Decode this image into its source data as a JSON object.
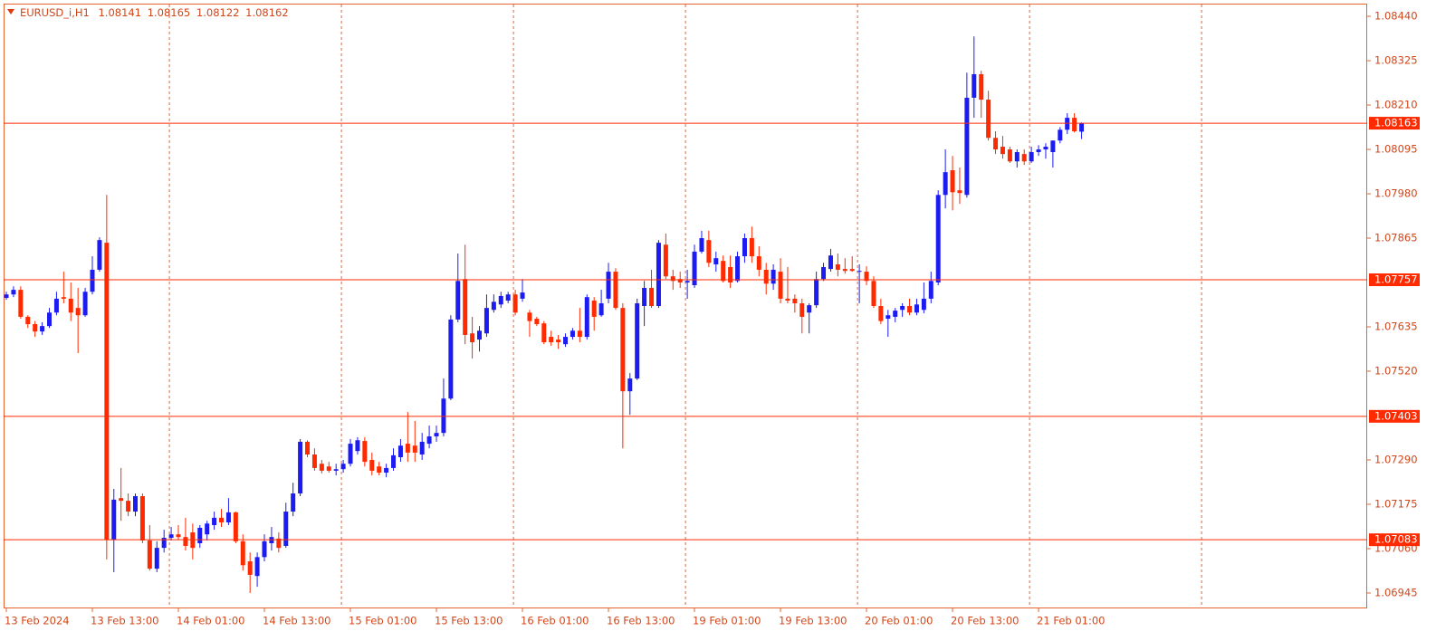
{
  "chart_data": {
    "type": "candlestick",
    "symbol": "EURUSD_i,H1",
    "last_ohlc": [
      1.08141,
      1.08165,
      1.08122,
      1.08162
    ],
    "categories": [
      "13 Feb 2024",
      null,
      null,
      null,
      null,
      null,
      null,
      null,
      null,
      null,
      null,
      null,
      "13 Feb 13:00",
      null,
      null,
      null,
      null,
      null,
      null,
      null,
      null,
      null,
      null,
      null,
      "14 Feb 01:00",
      null,
      null,
      null,
      null,
      null,
      null,
      null,
      null,
      null,
      null,
      null,
      "14 Feb 13:00",
      null,
      null,
      null,
      null,
      null,
      null,
      null,
      null,
      null,
      null,
      null,
      "15 Feb 01:00",
      null,
      null,
      null,
      null,
      null,
      null,
      null,
      null,
      null,
      null,
      null,
      "15 Feb 13:00",
      null,
      null,
      null,
      null,
      null,
      null,
      null,
      null,
      null,
      null,
      null,
      "16 Feb 01:00",
      null,
      null,
      null,
      null,
      null,
      null,
      null,
      null,
      null,
      null,
      null,
      "16 Feb 13:00",
      null,
      null,
      null,
      null,
      null,
      null,
      null,
      null,
      null,
      null,
      null,
      "19 Feb 01:00",
      null,
      null,
      null,
      null,
      null,
      null,
      null,
      null,
      null,
      null,
      null,
      "19 Feb 13:00",
      null,
      null,
      null,
      null,
      null,
      null,
      null,
      null,
      null,
      null,
      null,
      "20 Feb 01:00",
      null,
      null,
      null,
      null,
      null,
      null,
      null,
      null,
      null,
      null,
      null,
      "20 Feb 13:00",
      null,
      null,
      null,
      null,
      null,
      null,
      null,
      null,
      null,
      null,
      null,
      "21 Feb 01:00",
      null,
      null,
      null,
      null,
      null,
      null
    ],
    "open": [
      1.0771,
      1.07719,
      1.07731,
      1.07661,
      1.07642,
      1.07623,
      1.07637,
      1.07672,
      1.07712,
      1.07708,
      1.07684,
      1.07665,
      1.07726,
      1.07783,
      1.07853,
      1.07083,
      1.07191,
      1.07184,
      1.07156,
      1.07196,
      1.07081,
      1.07008,
      1.07062,
      1.07088,
      1.07097,
      1.0709,
      1.07102,
      1.07074,
      1.07097,
      1.07121,
      1.0714,
      1.07128,
      1.07154,
      1.07079,
      1.07027,
      1.06989,
      1.07038,
      1.07074,
      1.07086,
      1.07067,
      1.07156,
      1.07203,
      1.07337,
      1.07304,
      1.0728,
      1.07273,
      1.07262,
      1.07266,
      1.0728,
      1.07313,
      1.07339,
      1.0729,
      1.07273,
      1.07257,
      1.07269,
      1.07297,
      1.07332,
      1.07327,
      1.07304,
      1.07332,
      1.07351,
      1.0736,
      1.07449,
      1.07654,
      1.07759,
      1.07618,
      1.07602,
      1.07618,
      1.07679,
      1.07693,
      1.07703,
      1.07719,
      1.07708,
      1.07672,
      1.07656,
      1.07644,
      1.07609,
      1.07602,
      1.0759,
      1.07609,
      1.07625,
      1.07609,
      1.07703,
      1.07665,
      1.07708,
      1.07778,
      1.07684,
      1.07468,
      1.07501,
      1.07689,
      1.07736,
      1.07689,
      1.07848,
      1.07766,
      1.07759,
      1.0775,
      1.07743,
      1.0783,
      1.0786,
      1.07797,
      1.07806,
      1.0779,
      1.07754,
      1.07818,
      1.07865,
      1.07818,
      1.07783,
      1.07747,
      1.07778,
      1.07708,
      1.07708,
      1.07696,
      1.07672,
      1.07691,
      1.07759,
      1.07785,
      1.07797,
      1.07785,
      1.07785,
      1.07778,
      1.07778,
      1.07754,
      1.07689,
      1.07656,
      1.07661,
      1.07679,
      1.07689,
      1.07672,
      1.07679,
      1.07708,
      1.0775,
      1.07977,
      1.08041,
      1.07989,
      1.07977,
      1.08229,
      1.0829,
      1.08224,
      1.08125,
      1.08102,
      1.08095,
      1.08064,
      1.08083,
      1.08064,
      1.08088,
      1.08095,
      1.08088,
      1.08118,
      1.08146,
      1.08177,
      1.08141
    ],
    "high": [
      1.07726,
      1.0774,
      1.0774,
      1.07665,
      1.0765,
      1.07647,
      1.07684,
      1.07726,
      1.07778,
      1.0775,
      1.07736,
      1.07736,
      1.07818,
      1.07867,
      1.07977,
      1.07215,
      1.07269,
      1.07203,
      1.07203,
      1.07203,
      1.07121,
      1.07079,
      1.07109,
      1.07116,
      1.07121,
      1.0714,
      1.07125,
      1.07121,
      1.07132,
      1.07156,
      1.07163,
      1.07191,
      1.07156,
      1.07097,
      1.0705,
      1.0705,
      1.07097,
      1.07116,
      1.07102,
      1.07179,
      1.07231,
      1.07344,
      1.07341,
      1.0732,
      1.0729,
      1.07285,
      1.0728,
      1.0729,
      1.07344,
      1.07349,
      1.07349,
      1.07309,
      1.07285,
      1.0728,
      1.0732,
      1.07344,
      1.07414,
      1.07391,
      1.0736,
      1.07379,
      1.07379,
      1.07501,
      1.07665,
      1.07825,
      1.07848,
      1.07661,
      1.07637,
      1.07719,
      1.07719,
      1.07726,
      1.07726,
      1.07731,
      1.07759,
      1.07679,
      1.07661,
      1.0765,
      1.07625,
      1.07614,
      1.07618,
      1.07632,
      1.07684,
      1.07719,
      1.07712,
      1.07731,
      1.07801,
      1.07787,
      1.07696,
      1.07515,
      1.07708,
      1.07754,
      1.07783,
      1.0786,
      1.07877,
      1.07783,
      1.07778,
      1.07783,
      1.07848,
      1.07884,
      1.07884,
      1.0783,
      1.0782,
      1.0782,
      1.0783,
      1.07877,
      1.07895,
      1.07844,
      1.07801,
      1.07797,
      1.07813,
      1.0779,
      1.07719,
      1.07708,
      1.07696,
      1.07778,
      1.07801,
      1.07837,
      1.07825,
      1.07813,
      1.07818,
      1.07797,
      1.07792,
      1.07766,
      1.07708,
      1.07679,
      1.07684,
      1.07696,
      1.07708,
      1.07708,
      1.0775,
      1.07778,
      1.07989,
      1.08095,
      1.08078,
      1.08048,
      1.08294,
      1.08388,
      1.08299,
      1.08247,
      1.08142,
      1.0813,
      1.08102,
      1.08095,
      1.08095,
      1.08102,
      1.08106,
      1.08111,
      1.08118,
      1.08153,
      1.08189,
      1.08189,
      1.08165
    ],
    "low": [
      1.07705,
      1.07712,
      1.07656,
      1.07632,
      1.07609,
      1.07614,
      1.07632,
      1.07665,
      1.07696,
      1.0765,
      1.07567,
      1.07661,
      1.07719,
      1.07778,
      1.07032,
      1.06999,
      1.07132,
      1.07144,
      1.07144,
      1.07074,
      1.07003,
      1.06999,
      1.0705,
      1.07081,
      1.07083,
      1.07055,
      1.07032,
      1.07062,
      1.07081,
      1.07109,
      1.07116,
      1.07121,
      1.07074,
      1.07003,
      1.06945,
      1.06961,
      1.07027,
      1.07055,
      1.0705,
      1.07062,
      1.07144,
      1.07196,
      1.07297,
      1.07262,
      1.07255,
      1.07257,
      1.0725,
      1.07257,
      1.07273,
      1.07304,
      1.07273,
      1.0725,
      1.0725,
      1.07245,
      1.07262,
      1.07285,
      1.07285,
      1.07285,
      1.0729,
      1.0732,
      1.07337,
      1.07351,
      1.07445,
      1.07647,
      1.0759,
      1.07553,
      1.07571,
      1.07609,
      1.07672,
      1.07684,
      1.07696,
      1.07665,
      1.077,
      1.07609,
      1.07637,
      1.0759,
      1.07586,
      1.07578,
      1.07583,
      1.07602,
      1.07595,
      1.07602,
      1.07625,
      1.07661,
      1.07696,
      1.07679,
      1.0732,
      1.07407,
      1.07497,
      1.07637,
      1.07684,
      1.07684,
      1.07759,
      1.07731,
      1.07736,
      1.07708,
      1.07736,
      1.07825,
      1.0779,
      1.07778,
      1.0775,
      1.07736,
      1.0775,
      1.07801,
      1.07801,
      1.07766,
      1.07719,
      1.07731,
      1.07696,
      1.07696,
      1.07672,
      1.07618,
      1.07618,
      1.07684,
      1.07754,
      1.07778,
      1.07766,
      1.07773,
      1.07778,
      1.07696,
      1.07743,
      1.07684,
      1.07642,
      1.07609,
      1.07647,
      1.07661,
      1.07665,
      1.07665,
      1.0767,
      1.07696,
      1.07743,
      1.07942,
      1.07937,
      1.07954,
      1.0797,
      1.08177,
      1.08177,
      1.08118,
      1.08083,
      1.08071,
      1.0806,
      1.08048,
      1.08055,
      1.0806,
      1.08078,
      1.08071,
      1.08048,
      1.08111,
      1.08135,
      1.08139,
      1.08122
    ],
    "close": [
      1.07719,
      1.07731,
      1.07661,
      1.07642,
      1.07623,
      1.07637,
      1.07672,
      1.07708,
      1.07708,
      1.07672,
      1.07665,
      1.07726,
      1.07783,
      1.0786,
      1.07083,
      1.07187,
      1.07184,
      1.07156,
      1.07196,
      1.07081,
      1.07008,
      1.07062,
      1.07088,
      1.07097,
      1.0709,
      1.07067,
      1.07062,
      1.07114,
      1.07125,
      1.0714,
      1.07128,
      1.07154,
      1.07079,
      1.07017,
      1.06992,
      1.07038,
      1.07079,
      1.0709,
      1.07062,
      1.07156,
      1.07203,
      1.07337,
      1.07304,
      1.07269,
      1.07262,
      1.07262,
      1.07266,
      1.0728,
      1.07332,
      1.07341,
      1.07285,
      1.07262,
      1.07257,
      1.07269,
      1.07302,
      1.07327,
      1.07309,
      1.07309,
      1.07337,
      1.07351,
      1.0736,
      1.07449,
      1.07654,
      1.07754,
      1.07614,
      1.07595,
      1.07625,
      1.07684,
      1.077,
      1.07715,
      1.07719,
      1.07672,
      1.07724,
      1.0765,
      1.07642,
      1.07595,
      1.07595,
      1.07595,
      1.07609,
      1.07625,
      1.07609,
      1.07712,
      1.07661,
      1.07696,
      1.07778,
      1.07684,
      1.07468,
      1.07501,
      1.07696,
      1.07736,
      1.07689,
      1.07853,
      1.07766,
      1.07754,
      1.0775,
      1.07754,
      1.0783,
      1.07865,
      1.07801,
      1.07813,
      1.07754,
      1.0775,
      1.07818,
      1.07865,
      1.07818,
      1.07783,
      1.07747,
      1.07783,
      1.07708,
      1.07703,
      1.07696,
      1.07661,
      1.07691,
      1.07759,
      1.0779,
      1.0782,
      1.07783,
      1.0778,
      1.0778,
      1.0778,
      1.07754,
      1.07689,
      1.0765,
      1.07665,
      1.07677,
      1.07689,
      1.07672,
      1.07693,
      1.07708,
      1.07754,
      1.07977,
      1.08036,
      1.07984,
      1.07982,
      1.08229,
      1.0829,
      1.08224,
      1.08125,
      1.08095,
      1.08083,
      1.08064,
      1.08088,
      1.08064,
      1.08088,
      1.08095,
      1.08102,
      1.08118,
      1.08146,
      1.08177,
      1.08142,
      1.08162
    ],
    "up_color": "#1c1cf2",
    "down_color": "#ff2a00",
    "ylim": [
      1.06905,
      1.08473
    ],
    "yticks": [
      {
        "value": 1.0844,
        "label": "1.08440"
      },
      1.08325,
      {
        "value": 1.0821,
        "label": "1.08210"
      },
      1.08095,
      {
        "value": 1.0798,
        "label": "1.07980"
      },
      1.07865,
      1.07635,
      {
        "value": 1.0752,
        "label": "1.07520"
      },
      {
        "value": 1.0729,
        "label": "1.07290"
      },
      1.07175,
      {
        "value": 1.0706,
        "label": "1.07060"
      },
      1.06945
    ],
    "hlines": [
      1.08163,
      1.07757,
      1.07403,
      1.07083
    ],
    "hline_color": "#ff2a00"
  }
}
